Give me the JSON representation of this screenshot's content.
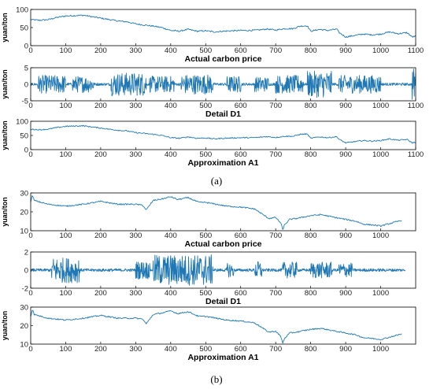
{
  "chart_data": [
    {
      "type": "line",
      "ylabel": "yuan/ton",
      "xlabel": "Actual carbon price",
      "xlim": [
        0,
        1100
      ],
      "ylim": [
        0,
        100
      ],
      "xticks": [
        0,
        100,
        200,
        300,
        400,
        500,
        600,
        700,
        800,
        900,
        1000,
        1100
      ],
      "yticks": [
        0,
        50,
        100
      ],
      "grid": false,
      "x": [
        0,
        25,
        50,
        75,
        100,
        125,
        150,
        175,
        200,
        225,
        250,
        275,
        300,
        325,
        350,
        375,
        400,
        425,
        450,
        475,
        500,
        525,
        550,
        575,
        600,
        625,
        650,
        675,
        700,
        725,
        750,
        770,
        790,
        800,
        825,
        850,
        875,
        880,
        900,
        925,
        950,
        975,
        1000,
        1025,
        1050,
        1075,
        1090,
        1100
      ],
      "values": [
        72,
        70,
        72,
        78,
        82,
        83,
        84,
        80,
        76,
        72,
        68,
        66,
        60,
        57,
        54,
        50,
        42,
        40,
        45,
        40,
        41,
        38,
        40,
        41,
        42,
        42,
        43,
        46,
        43,
        47,
        47,
        54,
        55,
        40,
        45,
        42,
        46,
        37,
        24,
        28,
        32,
        30,
        32,
        38,
        33,
        36,
        24,
        26
      ]
    },
    {
      "type": "line",
      "ylabel": "yuan/ton",
      "xlabel": "Detail D1",
      "xlim": [
        0,
        1100
      ],
      "ylim": [
        -5,
        5
      ],
      "xticks": [
        0,
        100,
        200,
        300,
        400,
        500,
        600,
        700,
        800,
        900,
        1000,
        1100
      ],
      "yticks": [
        -5,
        0,
        5
      ],
      "grid": false,
      "description": "high-frequency oscillation around 0",
      "amplitude_range": [
        -5,
        5
      ]
    },
    {
      "type": "line",
      "ylabel": "yuan/ton",
      "xlabel": "Approximation A1",
      "xlim": [
        0,
        1100
      ],
      "ylim": [
        0,
        100
      ],
      "xticks": [
        0,
        100,
        200,
        300,
        400,
        500,
        600,
        700,
        800,
        900,
        1000,
        1100
      ],
      "yticks": [
        0,
        50,
        100
      ],
      "grid": false,
      "x": [
        0,
        25,
        50,
        75,
        100,
        125,
        150,
        175,
        200,
        225,
        250,
        275,
        300,
        325,
        350,
        375,
        400,
        425,
        450,
        475,
        500,
        525,
        550,
        575,
        600,
        625,
        650,
        675,
        700,
        725,
        750,
        770,
        790,
        800,
        825,
        850,
        875,
        880,
        900,
        925,
        950,
        975,
        1000,
        1025,
        1050,
        1075,
        1090,
        1100
      ],
      "values": [
        72,
        70,
        72,
        78,
        82,
        83,
        84,
        80,
        76,
        72,
        68,
        66,
        60,
        57,
        54,
        50,
        42,
        40,
        45,
        40,
        41,
        38,
        40,
        41,
        42,
        42,
        43,
        46,
        43,
        47,
        47,
        54,
        55,
        40,
        45,
        42,
        46,
        37,
        24,
        28,
        32,
        30,
        32,
        38,
        33,
        36,
        24,
        26
      ]
    },
    {
      "type": "line",
      "ylabel": "yuan/ton",
      "xlabel": "Actual carbon price",
      "xlim": [
        0,
        1100
      ],
      "ylim": [
        10,
        30
      ],
      "xticks": [
        0,
        100,
        200,
        300,
        400,
        500,
        600,
        700,
        800,
        900,
        1000
      ],
      "yticks": [
        10,
        20,
        30
      ],
      "grid": false,
      "x": [
        0,
        5,
        10,
        50,
        100,
        150,
        200,
        250,
        300,
        320,
        330,
        350,
        380,
        400,
        420,
        450,
        480,
        500,
        530,
        560,
        600,
        640,
        660,
        680,
        700,
        715,
        720,
        725,
        740,
        760,
        800,
        830,
        870,
        900,
        930,
        950,
        980,
        1000,
        1030,
        1060
      ],
      "values": [
        25,
        29,
        26,
        24,
        23,
        24,
        25.5,
        24,
        24,
        23.5,
        21,
        26,
        27,
        28,
        26.5,
        27.5,
        25,
        25,
        24,
        23,
        22.5,
        21.5,
        19,
        16.5,
        17,
        14,
        10.5,
        13,
        16,
        16.5,
        18,
        18.5,
        17,
        16,
        15,
        13.5,
        13,
        12.5,
        14,
        15.5
      ]
    },
    {
      "type": "line",
      "ylabel": "",
      "xlabel": "Detail D1",
      "xlim": [
        0,
        1100
      ],
      "ylim": [
        -2,
        2
      ],
      "xticks": [
        0,
        100,
        200,
        300,
        400,
        500,
        600,
        700,
        800,
        900,
        1000
      ],
      "yticks": [
        -2,
        0,
        2
      ],
      "grid": false,
      "description": "high-frequency oscillation around 0",
      "amplitude_range": [
        -2,
        2
      ]
    },
    {
      "type": "line",
      "ylabel": "yuan/ton",
      "xlabel": "Approximation A1",
      "xlim": [
        0,
        1100
      ],
      "ylim": [
        10,
        30
      ],
      "xticks": [
        0,
        100,
        200,
        300,
        400,
        500,
        600,
        700,
        800,
        900,
        1000
      ],
      "yticks": [
        10,
        20,
        30
      ],
      "grid": false,
      "x": [
        0,
        5,
        10,
        50,
        100,
        150,
        200,
        250,
        300,
        320,
        330,
        350,
        380,
        400,
        420,
        450,
        480,
        500,
        530,
        560,
        600,
        640,
        660,
        680,
        700,
        715,
        720,
        725,
        740,
        760,
        800,
        830,
        870,
        900,
        930,
        950,
        980,
        1000,
        1030,
        1060
      ],
      "values": [
        25,
        29,
        26,
        24,
        23,
        24,
        25.5,
        24,
        24,
        23.5,
        21,
        26,
        27,
        28,
        26.5,
        27.5,
        25,
        25,
        24,
        23,
        22.5,
        21.5,
        19,
        16.5,
        17,
        14,
        10.5,
        13,
        16,
        16.5,
        18,
        18.5,
        17,
        16,
        15,
        13.5,
        13,
        12.5,
        14,
        15.5
      ]
    }
  ],
  "captions": {
    "a": "(a)",
    "b": "(b)"
  },
  "colors": {
    "series": "#1f77b4"
  }
}
